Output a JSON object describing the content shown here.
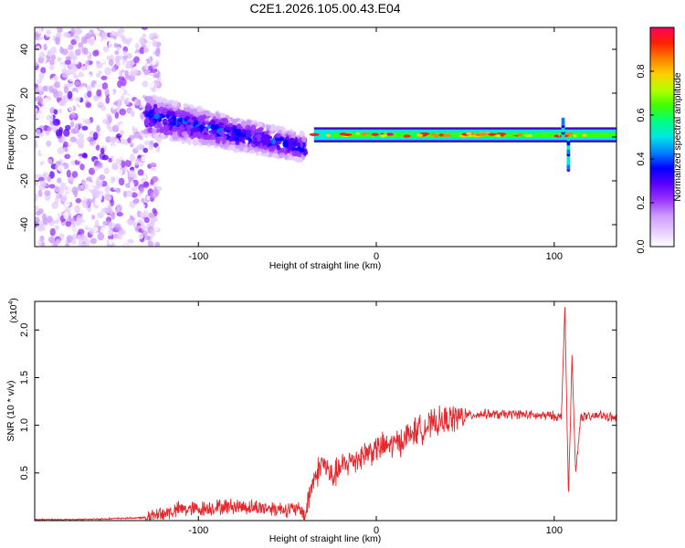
{
  "title": "C2E1.2026.105.00.43.E04",
  "colors": {
    "snr_line": "#e8262b",
    "colormap": [
      "#ffffff",
      "#e6ccff",
      "#cc99ff",
      "#9933ff",
      "#5a00ff",
      "#0000ff",
      "#0080ff",
      "#00e6e6",
      "#00ff80",
      "#40ff00",
      "#b3ff00",
      "#ffd000",
      "#ff8000",
      "#ff2000",
      "#ff0060"
    ]
  },
  "chart_data": [
    {
      "type": "heatmap",
      "title": "C2E1.2026.105.00.43.E04",
      "xlabel": "Height of straight line (km)",
      "ylabel": "Frequency (Hz)",
      "xlim": [
        -192,
        135
      ],
      "ylim": [
        -50,
        50
      ],
      "xticks": [
        "-100",
        "0",
        "100"
      ],
      "xtick_values": [
        -100,
        0,
        100
      ],
      "yticks": [
        "-40",
        "-20",
        "0",
        "20",
        "40"
      ],
      "ytick_values": [
        -40,
        -20,
        0,
        20,
        40
      ],
      "colorbar": {
        "label": "Normalized spectral amplitude",
        "range": [
          0,
          1
        ],
        "ticks": [
          "0.0",
          "0.2",
          "0.4",
          "0.6",
          "0.8"
        ],
        "tick_values": [
          0.0,
          0.2,
          0.4,
          0.6,
          0.8
        ]
      },
      "features": [
        {
          "name": "diffuse noise region",
          "x_range": [
            -192,
            -130
          ],
          "freq_range": [
            -50,
            50
          ],
          "amplitude": 0.15
        },
        {
          "name": "converging band",
          "x_range": [
            -130,
            -40
          ],
          "freq_start": 10,
          "freq_end": -5,
          "amplitude": 0.35
        },
        {
          "name": "narrow carrier line",
          "x_range": [
            -35,
            135
          ],
          "freq": 1,
          "amplitude": 0.9
        },
        {
          "name": "spike",
          "x": 105,
          "freq_range": [
            -15,
            8
          ],
          "amplitude": 0.5
        }
      ]
    },
    {
      "type": "line",
      "xlabel": "Height of straight line (km)",
      "ylabel": "SNR (10 * v/v)",
      "y_multiplier": "(x10^4)",
      "y_multiplier_base": "(x10",
      "y_multiplier_exp": "4",
      "y_multiplier_close": ")",
      "xlim": [
        -192,
        135
      ],
      "ylim": [
        0,
        2.3
      ],
      "xticks": [
        "-100",
        "0",
        "100"
      ],
      "xtick_values": [
        -100,
        0,
        100
      ],
      "yticks": [
        "0.5",
        "1.0",
        "1.5",
        "2.0"
      ],
      "ytick_values": [
        0.5,
        1.0,
        1.5,
        2.0
      ],
      "series": [
        {
          "name": "SNR",
          "x": [
            -192,
            -170,
            -150,
            -130,
            -120,
            -110,
            -100,
            -90,
            -80,
            -70,
            -60,
            -50,
            -42,
            -40,
            -36,
            -30,
            -25,
            -20,
            -15,
            -10,
            -5,
            0,
            5,
            10,
            15,
            20,
            30,
            40,
            50,
            60,
            70,
            80,
            90,
            100,
            104,
            106,
            108,
            110,
            112,
            115,
            120,
            125,
            130,
            135
          ],
          "values": [
            0.01,
            0.01,
            0.02,
            0.03,
            0.07,
            0.12,
            0.12,
            0.14,
            0.15,
            0.14,
            0.13,
            0.12,
            0.11,
            0.05,
            0.4,
            0.62,
            0.45,
            0.55,
            0.62,
            0.66,
            0.72,
            0.75,
            0.78,
            0.8,
            0.85,
            0.92,
            1.0,
            1.06,
            1.1,
            1.12,
            1.11,
            1.12,
            1.1,
            1.1,
            1.08,
            2.25,
            0.25,
            1.72,
            0.5,
            1.1,
            1.08,
            1.11,
            1.09,
            1.07
          ]
        }
      ]
    }
  ]
}
